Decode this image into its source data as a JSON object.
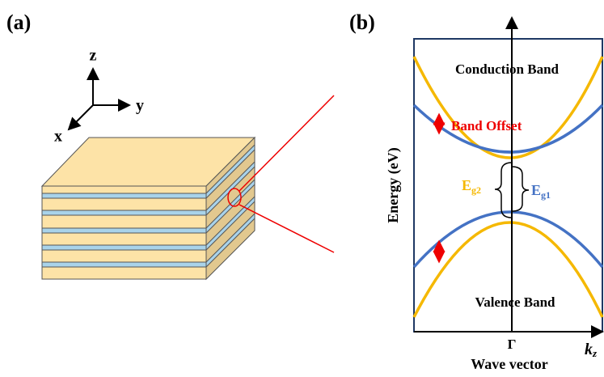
{
  "panel_a": {
    "label": "(a)",
    "axes": {
      "z": "z",
      "y": "y",
      "x": "x"
    }
  },
  "panel_b": {
    "label": "(b)",
    "conduction_band": "Conduction Band",
    "valence_band": "Valence Band",
    "band_offset": "Band Offset",
    "eg2": {
      "main": "E",
      "sub": "g2"
    },
    "eg1": {
      "main": "E",
      "sub": "g1"
    },
    "y_axis_label": "Energy (eV)",
    "x_axis_label": "Wave vector",
    "gamma": "Γ",
    "kz": {
      "main": "k",
      "sub": "z"
    }
  }
}
